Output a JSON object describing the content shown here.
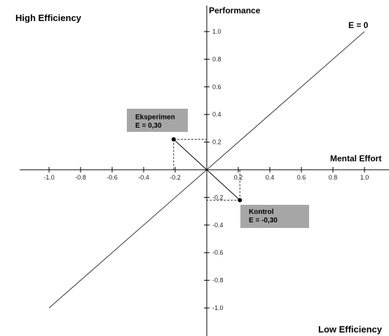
{
  "chart_data": {
    "type": "scatter",
    "title": "",
    "xlabel": "Mental Effort",
    "ylabel": "Performance",
    "xlim": [
      -1.15,
      1.15
    ],
    "ylim": [
      -1.15,
      1.15
    ],
    "grid": false,
    "x_ticks": [
      -1.0,
      -0.8,
      -0.6,
      -0.4,
      -0.2,
      0.2,
      0.4,
      0.6,
      0.8,
      1.0
    ],
    "y_ticks": [
      1.0,
      0.8,
      0.6,
      0.4,
      0.2,
      -0.2,
      -0.4,
      -0.6,
      -0.8,
      -1.0
    ],
    "x_tick_labels": [
      "-1.0",
      "-0.8",
      "-0.6",
      "-0.4",
      "-0.2",
      "0.2",
      "0.4",
      "0.6",
      "0.8",
      "1.0"
    ],
    "y_tick_labels": [
      "1.0",
      "0.8",
      "0.6",
      "0.4",
      "0.2",
      "-0.2",
      "-0.4",
      "-0.6",
      "-0.8",
      "-1.0"
    ],
    "corner_labels": {
      "top_left": "High Efficiency",
      "bottom_right": "Low Efficiency"
    },
    "reference_line": {
      "label": "E = 0",
      "from": [
        -1.0,
        -1.0
      ],
      "to": [
        1.0,
        1.0
      ]
    },
    "points": [
      {
        "name": "Eksperimen",
        "label": "E = 0,30",
        "x": -0.21,
        "y": 0.22
      },
      {
        "name": "Kontrol",
        "label": "E = -0,30",
        "x": 0.21,
        "y": -0.22
      }
    ],
    "colors": {
      "axis": "#000000",
      "reference_line": "#333333",
      "label_box": "#a6a6a6",
      "point": "#000000"
    }
  }
}
